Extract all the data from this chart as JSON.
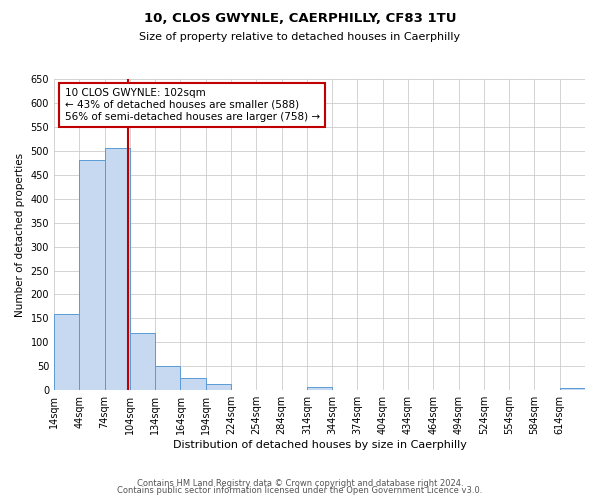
{
  "title": "10, CLOS GWYNLE, CAERPHILLY, CF83 1TU",
  "subtitle": "Size of property relative to detached houses in Caerphilly",
  "xlabel": "Distribution of detached houses by size in Caerphilly",
  "ylabel": "Number of detached properties",
  "bin_edges": [
    14,
    44,
    74,
    104,
    134,
    164,
    194,
    224,
    254,
    284,
    314,
    344,
    374,
    404,
    434,
    464,
    494,
    524,
    554,
    584,
    614,
    644
  ],
  "counts": [
    160,
    480,
    505,
    120,
    50,
    25,
    12,
    0,
    0,
    0,
    7,
    0,
    0,
    0,
    0,
    0,
    0,
    0,
    0,
    0,
    4
  ],
  "bar_color": "#c6d9f0",
  "bar_edge_color": "#5b9bd5",
  "vline_x": 102,
  "vline_color": "#c00000",
  "annotation_line1": "10 CLOS GWYNLE: 102sqm",
  "annotation_line2": "← 43% of detached houses are smaller (588)",
  "annotation_line3": "56% of semi-detached houses are larger (758) →",
  "annotation_box_color": "white",
  "annotation_box_edge_color": "#c00000",
  "ylim": [
    0,
    650
  ],
  "yticks": [
    0,
    50,
    100,
    150,
    200,
    250,
    300,
    350,
    400,
    450,
    500,
    550,
    600,
    650
  ],
  "footer_line1": "Contains HM Land Registry data © Crown copyright and database right 2024.",
  "footer_line2": "Contains public sector information licensed under the Open Government Licence v3.0.",
  "bg_color": "#ffffff",
  "grid_color": "#cccccc",
  "title_fontsize": 9.5,
  "subtitle_fontsize": 8,
  "xlabel_fontsize": 8,
  "ylabel_fontsize": 7.5,
  "tick_fontsize": 7,
  "footer_fontsize": 6,
  "annot_fontsize": 7.5
}
